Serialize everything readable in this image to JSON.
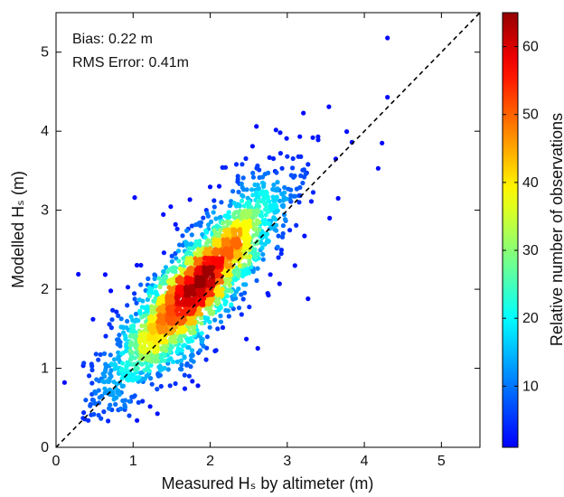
{
  "chart_data": {
    "type": "scatter",
    "title": "",
    "xlabel": "Measured Hₛ by altimeter (m)",
    "ylabel": "Modelled Hₛ (m)",
    "xlim": [
      0,
      5.5
    ],
    "ylim": [
      0,
      5.5
    ],
    "x_ticks": [
      "0",
      "1",
      "2",
      "3",
      "4",
      "5"
    ],
    "y_ticks": [
      "0",
      "1",
      "2",
      "3",
      "4",
      "5"
    ],
    "annotations": [
      "Bias: 0.22 m",
      "RMS Error: 0.41m"
    ],
    "reference_line": {
      "label": "",
      "style": "dashed",
      "slope": 1,
      "intercept": 0
    },
    "colorbar": {
      "label": "Relative number of observations",
      "range": [
        1,
        65
      ],
      "ticks": [
        "10",
        "20",
        "30",
        "40",
        "50",
        "60"
      ],
      "colormap": "jet"
    },
    "density_scale": {
      "center_x": 1.5,
      "center_y": 1.7,
      "peak_value": 65
    },
    "grid": false,
    "legend": "none",
    "colors": {
      "low": "#2a3e96",
      "mid": "#48c8d8",
      "high": "#7a0f0f",
      "reference": "#000000"
    },
    "outlier_points": [
      [
        4.3,
        5.18
      ],
      [
        4.3,
        4.43
      ],
      [
        4.18,
        3.53
      ],
      [
        4.23,
        3.85
      ],
      [
        3.84,
        3.86
      ],
      [
        3.54,
        4.31
      ],
      [
        3.21,
        4.23
      ],
      [
        3.4,
        3.93
      ],
      [
        3.63,
        3.65
      ],
      [
        3.0,
        3.68
      ],
      [
        2.6,
        4.06
      ],
      [
        2.16,
        3.54
      ],
      [
        2.55,
        3.81
      ],
      [
        3.27,
        3.58
      ],
      [
        2.34,
        3.58
      ],
      [
        0.29,
        2.19
      ],
      [
        1.02,
        3.16
      ],
      [
        0.11,
        0.82
      ],
      [
        0.62,
        0.45
      ],
      [
        0.95,
        0.4
      ],
      [
        2.47,
        1.37
      ],
      [
        3.27,
        1.88
      ],
      [
        2.7,
        3.2
      ],
      [
        1.95,
        3.0
      ],
      [
        2.9,
        2.07
      ],
      [
        3.55,
        2.9
      ],
      [
        3.66,
        3.15
      ],
      [
        1.55,
        2.82
      ],
      [
        0.48,
        1.62
      ],
      [
        3.1,
        2.3
      ]
    ],
    "points_note": "Dense cloud of several thousand point pairs concentrated between x 0.8-2.6 m, y 1.0-2.8 m, coloured by observation density (max ~65)."
  }
}
